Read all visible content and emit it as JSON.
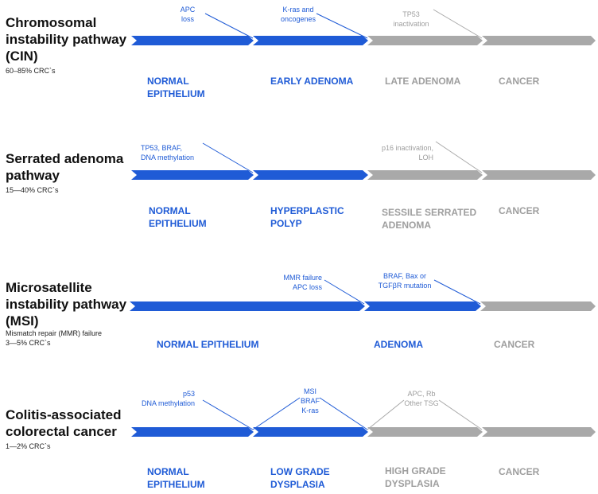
{
  "colors": {
    "blue": "#1f5bd6",
    "grey": "#9e9e9e",
    "title": "#111111"
  },
  "pathways": [
    {
      "title": "Chromosomal instability pathway (CIN)",
      "subtitle": "60–85% CRC`s",
      "annotations": [
        {
          "text": "APC\nloss",
          "color": "blue"
        },
        {
          "text": "K-ras and\noncogenes",
          "color": "blue"
        },
        {
          "text": "TP53\ninactivation",
          "color": "grey"
        }
      ],
      "stages": [
        {
          "text": "NORMAL\nEPITHELIUM",
          "color": "blue"
        },
        {
          "text": "EARLY ADENOMA",
          "color": "blue"
        },
        {
          "text": "LATE ADENOMA",
          "color": "grey"
        },
        {
          "text": "CANCER",
          "color": "grey"
        }
      ]
    },
    {
      "title": "Serrated adenoma pathway",
      "subtitle": "15—40% CRC`s",
      "annotations": [
        {
          "text": "TP53, BRAF,\nDNA methylation",
          "color": "blue"
        },
        {
          "text": "p16 inactivation,\nLOH",
          "color": "grey"
        }
      ],
      "stages": [
        {
          "text": "NORMAL\nEPITHELIUM",
          "color": "blue"
        },
        {
          "text": "HYPERPLASTIC\nPOLYP",
          "color": "blue"
        },
        {
          "text": "SESSILE SERRATED\nADENOMA",
          "color": "grey"
        },
        {
          "text": "CANCER",
          "color": "grey"
        }
      ]
    },
    {
      "title": "Microsatellite instability pathway (MSI)",
      "subtitle": "Mismatch repair (MMR) failure\n3—5% CRC`s",
      "annotations": [
        {
          "text": "MMR failure\nAPC loss",
          "color": "blue"
        },
        {
          "text": "BRAF, Bax or\nTGFβR mutation",
          "color": "blue"
        }
      ],
      "stages": [
        {
          "text": "NORMAL EPITHELIUM",
          "color": "blue"
        },
        {
          "text": "ADENOMA",
          "color": "blue"
        },
        {
          "text": "CANCER",
          "color": "grey"
        }
      ]
    },
    {
      "title": "Colitis-associated colorectal cancer",
      "subtitle": "1—2% CRC`s",
      "annotations": [
        {
          "text": "p53\nDNA methylation",
          "color": "blue"
        },
        {
          "text": "MSI\nBRAF\nK-ras",
          "color": "blue"
        },
        {
          "text": "APC, Rb\nOther TSG",
          "color": "grey"
        }
      ],
      "stages": [
        {
          "text": "NORMAL\nEPITHELIUM",
          "color": "blue"
        },
        {
          "text": "LOW GRADE\nDYSPLASIA",
          "color": "blue"
        },
        {
          "text": "HIGH GRADE\nDYSPLASIA",
          "color": "grey"
        },
        {
          "text": "CANCER",
          "color": "grey"
        }
      ]
    }
  ]
}
